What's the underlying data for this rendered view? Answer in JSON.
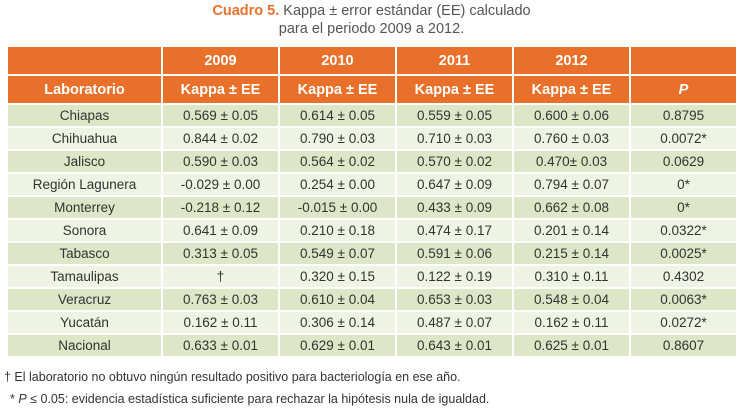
{
  "caption": {
    "label": "Cuadro 5.",
    "line1": "Kappa ± error estándar (EE) calculado",
    "line2": "para el periodo 2009 a 2012."
  },
  "table": {
    "years": [
      "2009",
      "2010",
      "2011",
      "2012"
    ],
    "col_header_lab": "Laboratorio",
    "col_header_kappa": [
      "Kappa ± EE",
      "Kappa ± EE",
      "Kappa ± EE",
      "Kappa ± EE"
    ],
    "col_header_p": "P",
    "rows": [
      [
        "Chiapas",
        "0.569 ± 0.05",
        "0.614 ± 0.05",
        "0.559 ± 0.05",
        "0.600 ± 0.06",
        "0.8795"
      ],
      [
        "Chihuahua",
        "0.844 ± 0.02",
        "0.790 ± 0.03",
        "0.710 ± 0.03",
        "0.760 ± 0.03",
        "0.0072*"
      ],
      [
        "Jalisco",
        "0.590 ± 0.03",
        "0.564 ± 0.02",
        "0.570 ± 0.02",
        "0.470± 0.03",
        "0.0629"
      ],
      [
        "Región Lagunera",
        "-0.029 ± 0.00",
        "0.254 ± 0.00",
        "0.647 ± 0.09",
        "0.794 ± 0.07",
        "0*"
      ],
      [
        "Monterrey",
        "-0.218 ± 0.12",
        "-0.015 ± 0.00",
        "0.433 ± 0.09",
        "0.662 ± 0.08",
        "0*"
      ],
      [
        "Sonora",
        "0.641 ± 0.09",
        "0.210 ± 0.18",
        "0.474 ± 0.17",
        "0.201 ± 0.14",
        "0.0322*"
      ],
      [
        "Tabasco",
        "0.313 ± 0.05",
        "0.549 ± 0.07",
        "0.591 ± 0.06",
        "0.215 ± 0.14",
        "0.0025*"
      ],
      [
        "Tamaulipas",
        "†",
        "0.320 ± 0.15",
        "0.122 ± 0.19",
        "0.310 ± 0.11",
        "0.4302"
      ],
      [
        "Veracruz",
        "0.763 ± 0.03",
        "0.610 ± 0.04",
        "0.653 ± 0.03",
        "0.548 ± 0.04",
        "0.0063*"
      ],
      [
        "Yucatán",
        "0.162 ± 0.11",
        "0.306 ± 0.14",
        "0.487 ± 0.07",
        "0.162 ± 0.11",
        "0.0272*"
      ],
      [
        "Nacional",
        "0.633 ± 0.01",
        "0.629 ± 0.01",
        "0.643 ± 0.01",
        "0.625 ± 0.01",
        "0.8607"
      ]
    ]
  },
  "notes": {
    "dagger": "† El laboratorio no obtuvo ningún resultado positivo para bacteriología en ese año.",
    "asterisk_prefix": "* ",
    "asterisk_p": "P",
    "asterisk_rest": " ≤ 0.05: evidencia estadística suficiente para rechazar la hipótesis nula de igualdad."
  }
}
